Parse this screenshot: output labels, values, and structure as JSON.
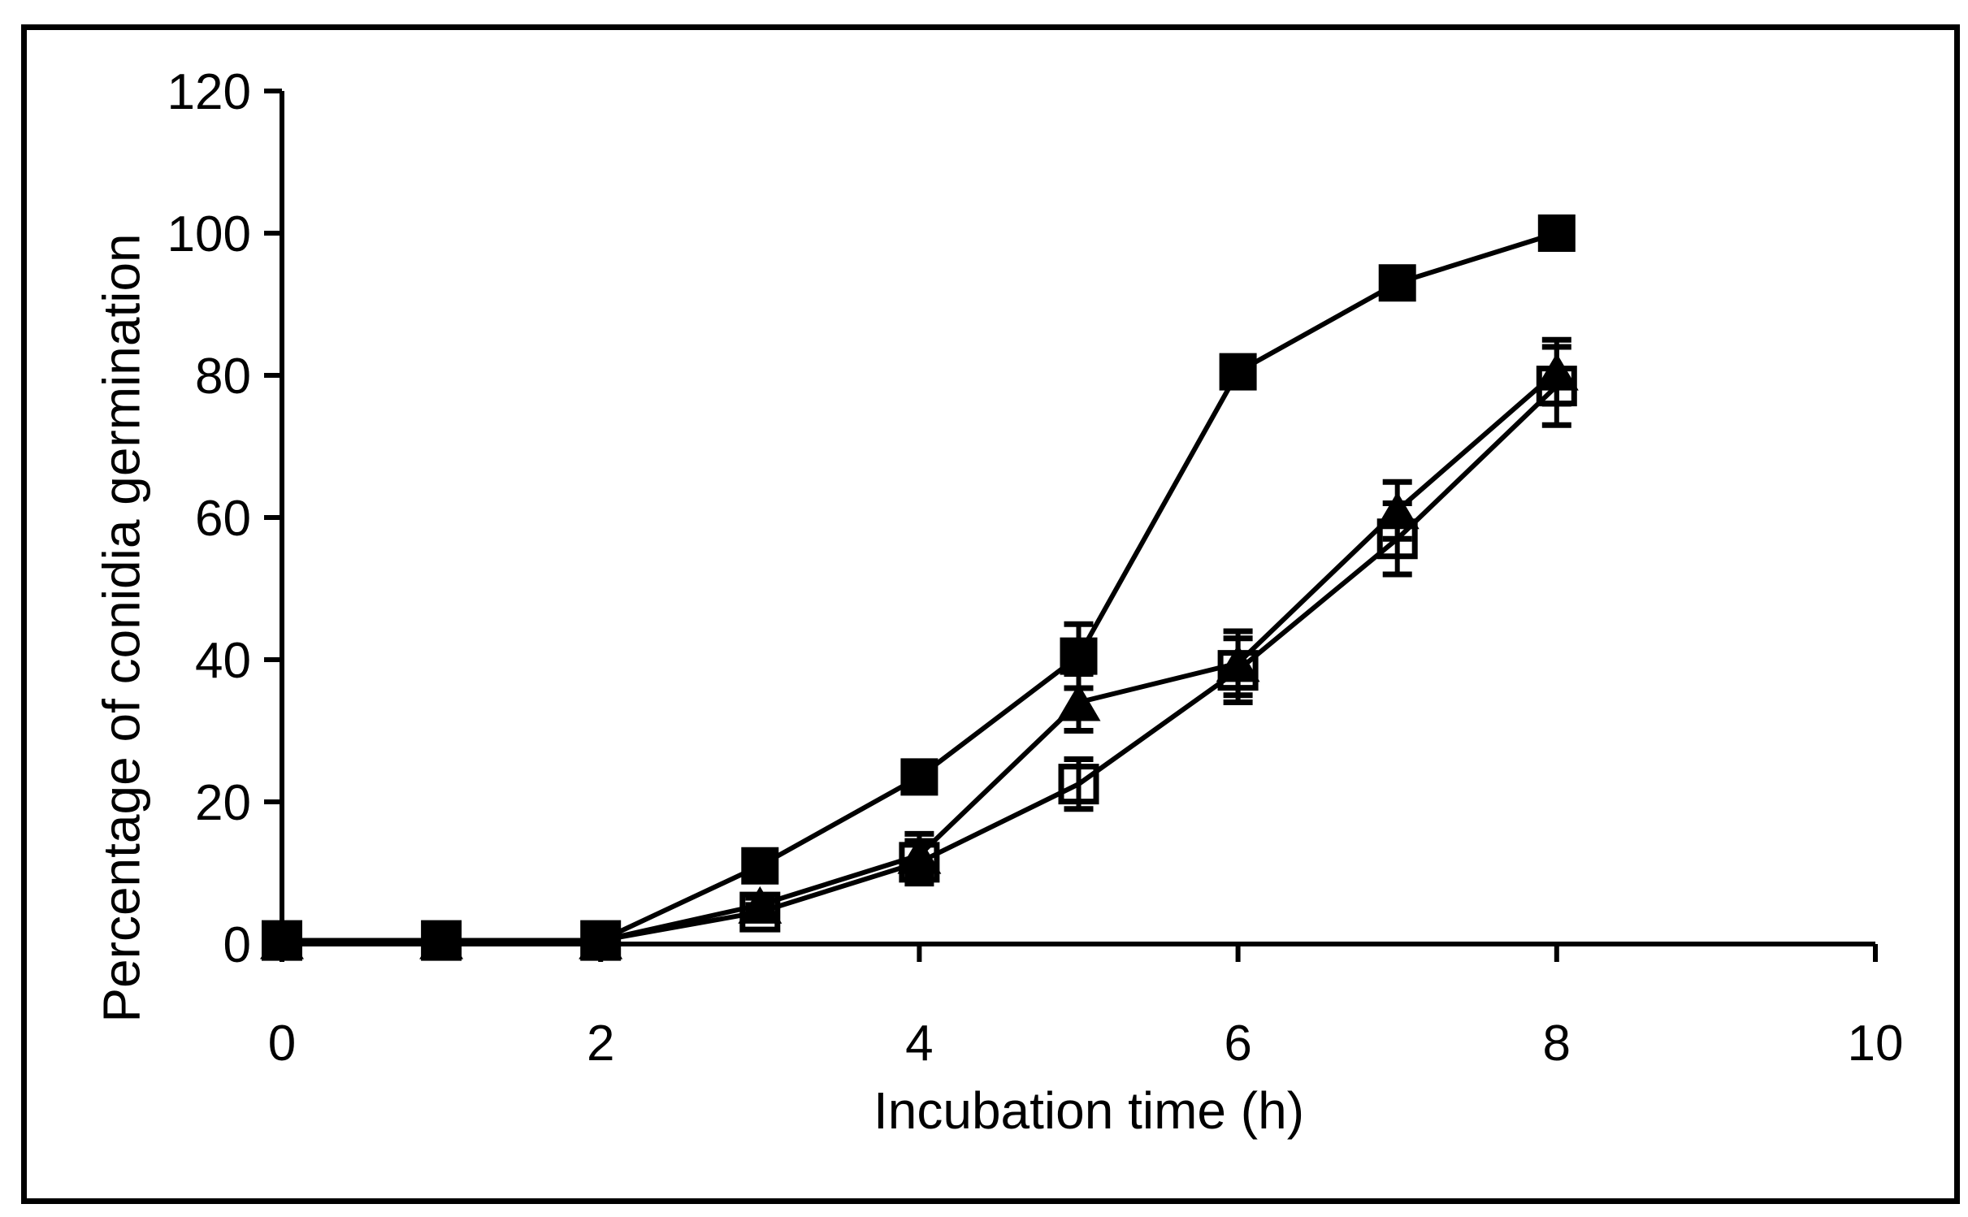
{
  "figure": {
    "x_axis_title": "Incubation time (h)",
    "y_axis_title": "Percentage of conidia germination"
  },
  "chart_data": {
    "type": "line",
    "title": "",
    "xlabel": "Incubation time (h)",
    "ylabel": "Percentage of conidia germination",
    "x": [
      0,
      1,
      2,
      3,
      4,
      5,
      6,
      7,
      8
    ],
    "series": [
      {
        "name": "open-square-series",
        "marker": "open-square",
        "values": [
          0.5,
          0.5,
          0.5,
          4.5,
          11.5,
          22.5,
          38.5,
          57,
          78.5
        ],
        "errors": [
          0,
          0,
          0,
          1,
          3,
          3.5,
          4.5,
          5,
          5.5
        ]
      },
      {
        "name": "filled-triangle-series",
        "marker": "filled-triangle",
        "values": [
          0.5,
          0.5,
          0.5,
          5.5,
          12.5,
          34,
          39.5,
          61,
          80.5
        ],
        "errors": [
          0,
          0,
          0,
          1,
          3,
          4,
          4.5,
          4,
          4.5
        ]
      },
      {
        "name": "filled-square-series",
        "marker": "filled-square",
        "values": [
          0.5,
          0.5,
          0.5,
          11,
          23.5,
          40.5,
          80.5,
          93,
          100
        ],
        "errors": [
          0,
          0,
          0,
          0.5,
          0.5,
          4.5,
          1,
          1.5,
          1
        ]
      }
    ],
    "xlim": [
      0,
      10
    ],
    "ylim": [
      0,
      120
    ],
    "x_ticks": [
      0,
      2,
      4,
      6,
      8,
      10
    ],
    "y_ticks": [
      0,
      20,
      40,
      60,
      80,
      100,
      120
    ],
    "grid": false,
    "legend": "none",
    "colors": {
      "foreground": "#000000",
      "background": "#ffffff"
    }
  }
}
